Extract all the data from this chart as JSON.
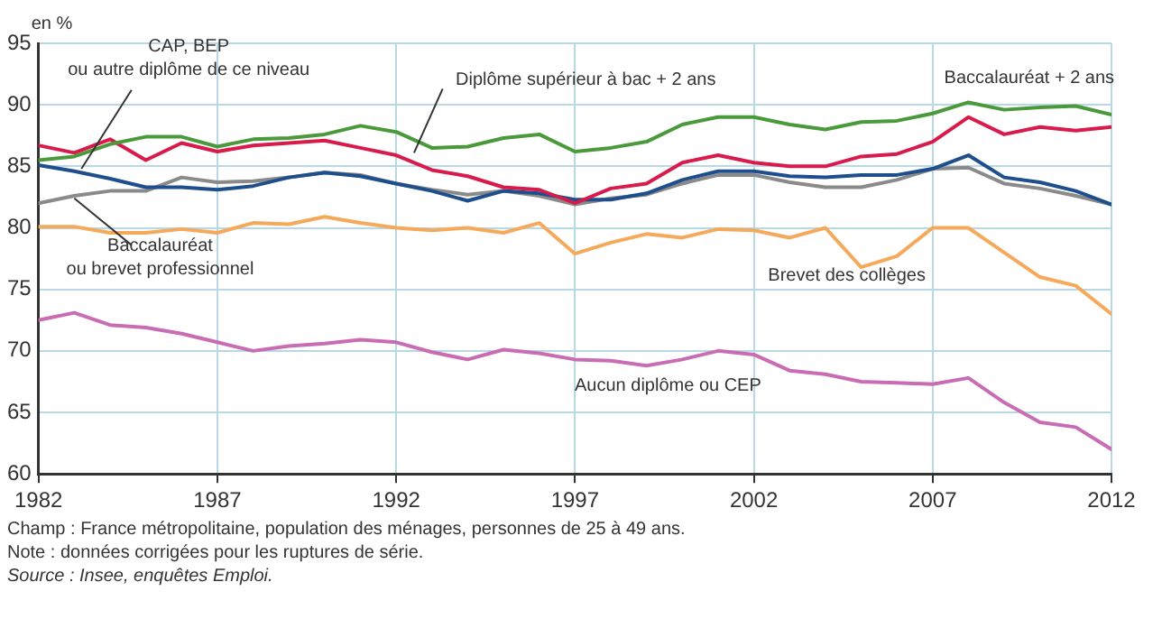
{
  "chart_data": {
    "type": "line",
    "ylabel": "en %",
    "x": [
      1982,
      1983,
      1984,
      1985,
      1986,
      1987,
      1988,
      1989,
      1990,
      1991,
      1992,
      1993,
      1994,
      1995,
      1996,
      1997,
      1998,
      1999,
      2000,
      2001,
      2002,
      2003,
      2004,
      2005,
      2006,
      2007,
      2008,
      2009,
      2010,
      2011,
      2012
    ],
    "series": [
      {
        "name": "Baccalauréat + 2 ans",
        "color": "#4a9a3c",
        "values": [
          85.5,
          85.8,
          86.8,
          87.4,
          87.4,
          86.6,
          87.2,
          87.3,
          87.6,
          88.3,
          87.8,
          86.5,
          86.6,
          87.3,
          87.6,
          86.2,
          86.5,
          87.0,
          88.4,
          89.0,
          89.0,
          88.4,
          88.0,
          88.6,
          88.7,
          89.3,
          90.2,
          89.6,
          89.8,
          89.9,
          89.2
        ]
      },
      {
        "name": "Diplôme supérieur à bac + 2 ans",
        "color": "#d81b4a",
        "values": [
          86.7,
          86.1,
          87.2,
          85.5,
          86.9,
          86.2,
          86.7,
          86.9,
          87.1,
          86.5,
          85.9,
          84.7,
          84.2,
          83.3,
          83.1,
          82.0,
          83.2,
          83.6,
          85.3,
          85.9,
          85.3,
          85.0,
          85.0,
          85.8,
          86.0,
          87.0,
          89.0,
          87.6,
          88.2,
          87.9,
          88.2
        ]
      },
      {
        "name": "CAP, BEP\nou autre diplôme de ce niveau",
        "color": "#1f4e8c",
        "values": [
          85.1,
          84.6,
          84.0,
          83.3,
          83.3,
          83.1,
          83.4,
          84.1,
          84.5,
          84.2,
          83.6,
          83.0,
          82.2,
          83.0,
          82.8,
          82.3,
          82.3,
          82.8,
          83.9,
          84.6,
          84.6,
          84.2,
          84.1,
          84.3,
          84.3,
          84.8,
          85.9,
          84.1,
          83.7,
          83.0,
          81.9
        ]
      },
      {
        "name": "Baccalauréat\nou brevet professionnel",
        "color": "#8a8a8a",
        "values": [
          82.0,
          82.6,
          83.0,
          83.0,
          84.1,
          83.7,
          83.8,
          84.1,
          84.5,
          84.3,
          83.6,
          83.1,
          82.7,
          83.0,
          82.6,
          81.9,
          82.4,
          82.7,
          83.6,
          84.3,
          84.3,
          83.7,
          83.3,
          83.3,
          83.9,
          84.8,
          84.9,
          83.6,
          83.2,
          82.6,
          81.9
        ]
      },
      {
        "name": "Brevet des collèges",
        "color": "#f5a95a",
        "values": [
          80.1,
          80.1,
          79.6,
          79.6,
          79.9,
          79.6,
          80.4,
          80.3,
          80.9,
          80.4,
          80.0,
          79.8,
          80.0,
          79.6,
          80.4,
          77.9,
          78.8,
          79.5,
          79.2,
          79.9,
          79.8,
          79.2,
          80.0,
          76.8,
          77.7,
          80.0,
          80.0,
          78.0,
          76.0,
          75.3,
          73.0
        ]
      },
      {
        "name": "Aucun diplôme ou CEP",
        "color": "#c86db4",
        "values": [
          72.5,
          73.1,
          72.1,
          71.9,
          71.4,
          70.7,
          70.0,
          70.4,
          70.6,
          70.9,
          70.7,
          69.9,
          69.3,
          70.1,
          69.8,
          69.3,
          69.2,
          68.8,
          69.3,
          70.0,
          69.7,
          68.4,
          68.1,
          67.5,
          67.4,
          67.3,
          67.8,
          65.8,
          64.2,
          63.8,
          62.0
        ]
      }
    ],
    "xlim": [
      1982,
      2012
    ],
    "xticks": [
      1982,
      1987,
      1992,
      1997,
      2002,
      2007,
      2012
    ],
    "ylim": [
      60,
      95
    ],
    "yticks": [
      60,
      65,
      70,
      75,
      80,
      85,
      90,
      95
    ],
    "grid": true,
    "legend": false,
    "marker": "none",
    "line_style": "solid",
    "annotations": [
      "Champ : France métropolitaine, population des ménages, personnes de 25 à 49 ans.",
      "Note : données corrigées pour les ruptures de série.",
      "Source : Insee, enquêtes Emploi."
    ]
  }
}
